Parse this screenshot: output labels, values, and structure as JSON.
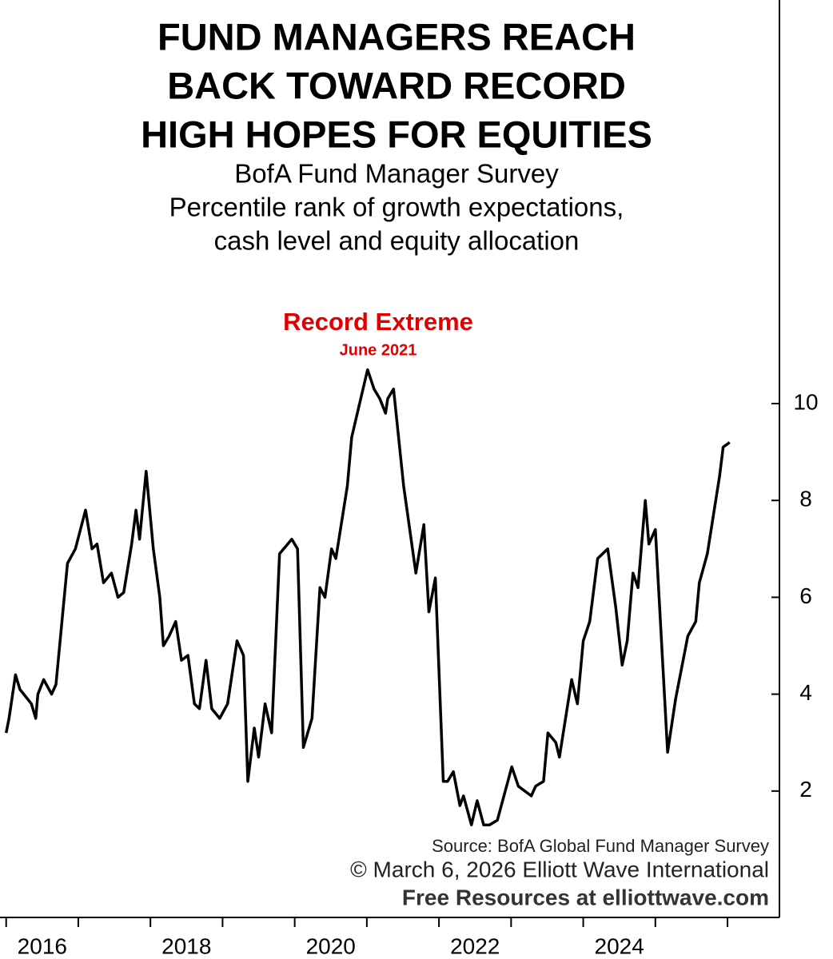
{
  "chart_data": {
    "type": "line",
    "title": [
      "FUND MANAGERS REACH",
      "BACK TOWARD RECORD",
      "HIGH HOPES FOR EQUITIES"
    ],
    "subtitle": [
      "BofA Fund Manager Survey",
      "Percentile rank of growth expectations,",
      "cash level and equity allocation"
    ],
    "annotation": {
      "title": "Record Extreme",
      "subtitle": "June 2021"
    },
    "source": [
      "Source: BofA Global Fund Manager Survey",
      "© March 6, 2026  Elliott Wave International",
      "Free Resources at elliottwave.com"
    ],
    "x": [
      2016.0,
      2016.04,
      2016.13,
      2016.19,
      2016.35,
      2016.41,
      2016.44,
      2016.52,
      2016.63,
      2016.69,
      2016.85,
      2016.96,
      2017.1,
      2017.19,
      2017.26,
      2017.35,
      2017.46,
      2017.55,
      2017.63,
      2017.74,
      2017.8,
      2017.85,
      2017.94,
      2018.04,
      2018.13,
      2018.18,
      2018.26,
      2018.35,
      2018.43,
      2018.52,
      2018.61,
      2018.68,
      2018.77,
      2018.85,
      2018.96,
      2019.07,
      2019.2,
      2019.29,
      2019.35,
      2019.44,
      2019.5,
      2019.59,
      2019.68,
      2019.79,
      2019.96,
      2020.04,
      2020.12,
      2020.24,
      2020.35,
      2020.42,
      2020.51,
      2020.57,
      2020.73,
      2020.79,
      2020.9,
      2021.01,
      2021.1,
      2021.18,
      2021.26,
      2021.29,
      2021.37,
      2021.51,
      2021.68,
      2021.79,
      2021.86,
      2021.95,
      2022.06,
      2022.12,
      2022.2,
      2022.29,
      2022.34,
      2022.45,
      2022.53,
      2022.62,
      2022.7,
      2022.81,
      2023.01,
      2023.1,
      2023.28,
      2023.34,
      2023.45,
      2023.51,
      2023.62,
      2023.67,
      2023.84,
      2023.92,
      2024.0,
      2024.09,
      2024.2,
      2024.34,
      2024.45,
      2024.54,
      2024.61,
      2024.69,
      2024.76,
      2024.86,
      2024.91,
      2025.0,
      2025.17,
      2025.28,
      2025.45,
      2025.56,
      2025.61,
      2025.72,
      2025.89,
      2025.94,
      2026.03
    ],
    "series": [
      {
        "color": "#000000",
        "values": [
          3.2,
          3.5,
          4.4,
          4.1,
          3.8,
          3.5,
          4.0,
          4.3,
          4.0,
          4.2,
          6.7,
          7.0,
          7.8,
          7.0,
          7.1,
          6.3,
          6.5,
          6.0,
          6.1,
          7.1,
          7.8,
          7.2,
          8.6,
          7.0,
          6.0,
          5.0,
          5.2,
          5.5,
          4.7,
          4.8,
          3.8,
          3.7,
          4.7,
          3.7,
          3.5,
          3.8,
          5.1,
          4.8,
          2.2,
          3.3,
          2.7,
          3.8,
          3.2,
          6.9,
          7.2,
          7.0,
          2.9,
          3.5,
          6.2,
          6.0,
          7.0,
          6.8,
          8.3,
          9.3,
          10.0,
          10.7,
          10.3,
          10.1,
          9.8,
          10.1,
          10.3,
          8.3,
          6.5,
          7.5,
          5.7,
          6.4,
          2.2,
          2.2,
          2.4,
          1.7,
          1.9,
          1.3,
          1.8,
          1.3,
          1.3,
          1.4,
          2.5,
          2.1,
          1.9,
          2.1,
          2.2,
          3.2,
          3.0,
          2.7,
          4.3,
          3.8,
          5.1,
          5.5,
          6.8,
          7.0,
          5.8,
          4.6,
          5.1,
          6.5,
          6.2,
          8.0,
          7.1,
          7.4,
          2.8,
          3.9,
          5.2,
          5.5,
          6.3,
          6.9,
          8.5,
          9.1,
          9.2
        ]
      }
    ],
    "xlim": [
      2015.97,
      2026.72
    ],
    "xticks": [
      2016,
      2017,
      2018,
      2019,
      2020,
      2021,
      2022,
      2023,
      2024,
      2025,
      2026
    ],
    "xtick_labels": [
      {
        "value": 2016.5,
        "label": "2016"
      },
      {
        "value": 2018.5,
        "label": "2018"
      },
      {
        "value": 2020.5,
        "label": "2020"
      },
      {
        "value": 2022.5,
        "label": "2022"
      },
      {
        "value": 2024.5,
        "label": "2024"
      }
    ],
    "ylim": [
      -0.61,
      18.25
    ],
    "yticks": [
      2,
      4,
      6,
      8,
      10
    ],
    "grid": false
  }
}
